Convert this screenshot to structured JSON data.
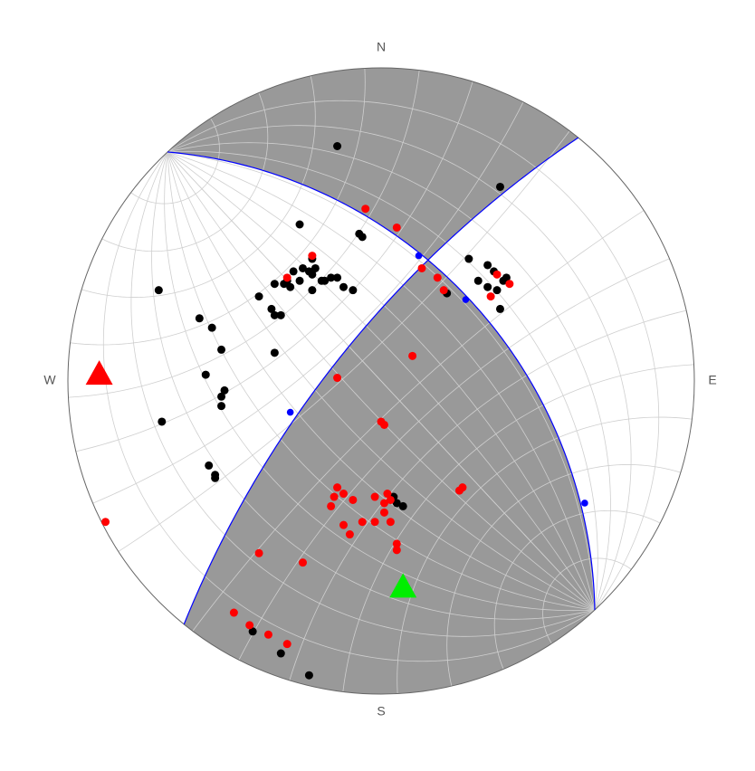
{
  "chart_data": {
    "type": "stereonet",
    "direction_labels": [
      "N",
      "E",
      "S",
      "W"
    ],
    "xlim": [
      -1,
      1
    ],
    "ylim": [
      -1,
      1
    ],
    "fill_color": "#999999",
    "grid": true,
    "planes": [
      {
        "strike": 317,
        "dip": 48,
        "color": "#0000ff"
      },
      {
        "strike": 219,
        "dip": 73,
        "color": "#0000ff"
      }
    ],
    "series": [
      {
        "color": "#000000",
        "marker": "circle",
        "x": [
          -0.14,
          0.38,
          -0.26,
          -0.07,
          -0.06,
          -0.22,
          -0.25,
          -0.23,
          -0.21,
          -0.28,
          -0.3,
          -0.31,
          -0.29,
          -0.26,
          -0.22,
          -0.19,
          -0.18,
          -0.16,
          -0.14,
          -0.12,
          -0.09,
          -0.22,
          -0.34,
          -0.39,
          -0.35,
          -0.34,
          -0.32,
          -0.71,
          -0.58,
          -0.54,
          -0.51,
          -0.34,
          -0.56,
          -0.5,
          -0.51,
          -0.51,
          -0.7,
          -0.55,
          -0.53,
          -0.53,
          0.28,
          0.34,
          0.36,
          0.31,
          0.34,
          0.39,
          0.4,
          0.37,
          0.38,
          0.21,
          0.04,
          0.05,
          0.07,
          -0.41,
          -0.32,
          -0.23
        ],
        "y": [
          0.75,
          0.62,
          0.5,
          0.47,
          0.46,
          0.39,
          0.36,
          0.35,
          0.36,
          0.35,
          0.32,
          0.31,
          0.3,
          0.32,
          0.34,
          0.32,
          0.32,
          0.33,
          0.33,
          0.3,
          0.29,
          0.29,
          0.31,
          0.27,
          0.23,
          0.21,
          0.21,
          0.29,
          0.2,
          0.17,
          0.1,
          0.09,
          0.02,
          -0.03,
          -0.05,
          -0.08,
          -0.13,
          -0.27,
          -0.3,
          -0.31,
          0.39,
          0.37,
          0.35,
          0.32,
          0.3,
          0.32,
          0.33,
          0.29,
          0.23,
          0.28,
          -0.37,
          -0.39,
          -0.4,
          -0.8,
          -0.87,
          -0.94
        ]
      },
      {
        "color": "#ff0000",
        "marker": "circle",
        "x": [
          -0.05,
          0.05,
          -0.22,
          -0.3,
          0.13,
          0.18,
          0.2,
          0.37,
          0.41,
          0.35,
          0.1,
          -0.14,
          0.0,
          0.01,
          0.26,
          0.25,
          -0.14,
          -0.15,
          -0.12,
          -0.16,
          -0.09,
          -0.02,
          0.02,
          0.01,
          0.03,
          0.01,
          -0.06,
          -0.02,
          0.03,
          -0.12,
          -0.1,
          0.05,
          0.05,
          -0.39,
          -0.25,
          -0.88,
          -0.47,
          -0.42,
          -0.36,
          -0.3
        ],
        "y": [
          0.55,
          0.49,
          0.4,
          0.33,
          0.36,
          0.33,
          0.29,
          0.34,
          0.31,
          0.27,
          0.08,
          0.01,
          -0.13,
          -0.14,
          -0.34,
          -0.35,
          -0.34,
          -0.37,
          -0.36,
          -0.4,
          -0.38,
          -0.37,
          -0.36,
          -0.39,
          -0.38,
          -0.42,
          -0.45,
          -0.45,
          -0.45,
          -0.46,
          -0.49,
          -0.52,
          -0.54,
          -0.55,
          -0.58,
          -0.45,
          -0.74,
          -0.78,
          -0.81,
          -0.84
        ]
      },
      {
        "color": "#0000ff",
        "marker": "small-circle",
        "x": [
          0.12,
          0.27,
          -0.29,
          0.65
        ],
        "y": [
          0.4,
          0.26,
          -0.1,
          -0.39
        ]
      },
      {
        "color": "#ff0000",
        "marker": "triangle",
        "x": [
          -0.9
        ],
        "y": [
          0.02
        ]
      },
      {
        "color": "#00ee00",
        "marker": "triangle",
        "x": [
          0.07
        ],
        "y": [
          -0.66
        ]
      }
    ]
  }
}
